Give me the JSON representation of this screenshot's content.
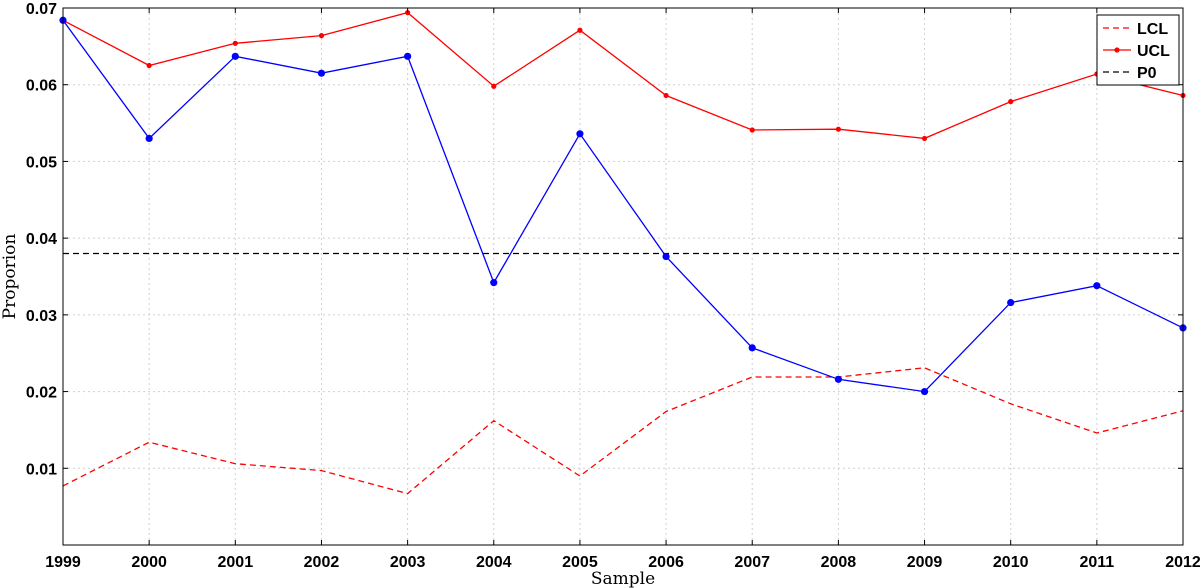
{
  "chart_data": {
    "type": "line",
    "title": "",
    "xlabel": "Sample",
    "ylabel": "Proporion",
    "x": [
      1999,
      2000,
      2001,
      2002,
      2003,
      2004,
      2005,
      2006,
      2007,
      2008,
      2009,
      2010,
      2011,
      2012
    ],
    "xlim": [
      1999,
      2012
    ],
    "ylim": [
      0,
      0.07
    ],
    "yticks": [
      "",
      "0.01",
      "0.02",
      "0.03",
      "0.04",
      "0.05",
      "0.06",
      "0.07"
    ],
    "xticks": [
      "1999",
      "2000",
      "2001",
      "2002",
      "2003",
      "2004",
      "2005",
      "2006",
      "2007",
      "2008",
      "2009",
      "2010",
      "2011",
      "2012"
    ],
    "grid": true,
    "legend_position": "top-right",
    "series": [
      {
        "name": "LCL",
        "color": "#ff0000",
        "style": "dashed",
        "marker": "none",
        "values": [
          0.0077,
          0.0134,
          0.0106,
          0.0097,
          0.0067,
          0.0162,
          0.009,
          0.0174,
          0.0219,
          0.0219,
          0.0231,
          0.0184,
          0.0146,
          0.0175
        ]
      },
      {
        "name": "UCL",
        "color": "#ff0000",
        "style": "solid",
        "marker": "dot",
        "values": [
          0.0684,
          0.0625,
          0.0654,
          0.0664,
          0.0694,
          0.0598,
          0.0671,
          0.0586,
          0.0541,
          0.0542,
          0.053,
          0.0578,
          0.0614,
          0.0586
        ]
      },
      {
        "name": "P0",
        "color": "#000000",
        "style": "dashed",
        "marker": "none",
        "values": [
          0.038,
          0.038,
          0.038,
          0.038,
          0.038,
          0.038,
          0.038,
          0.038,
          0.038,
          0.038,
          0.038,
          0.038,
          0.038,
          0.038
        ]
      },
      {
        "color": "#0000ff",
        "style": "solid",
        "marker": "dot",
        "values": [
          0.0684,
          0.053,
          0.0637,
          0.0615,
          0.0637,
          0.0342,
          0.0536,
          0.0376,
          0.0257,
          0.0216,
          0.02,
          0.0316,
          0.0338,
          0.0283
        ]
      }
    ]
  }
}
